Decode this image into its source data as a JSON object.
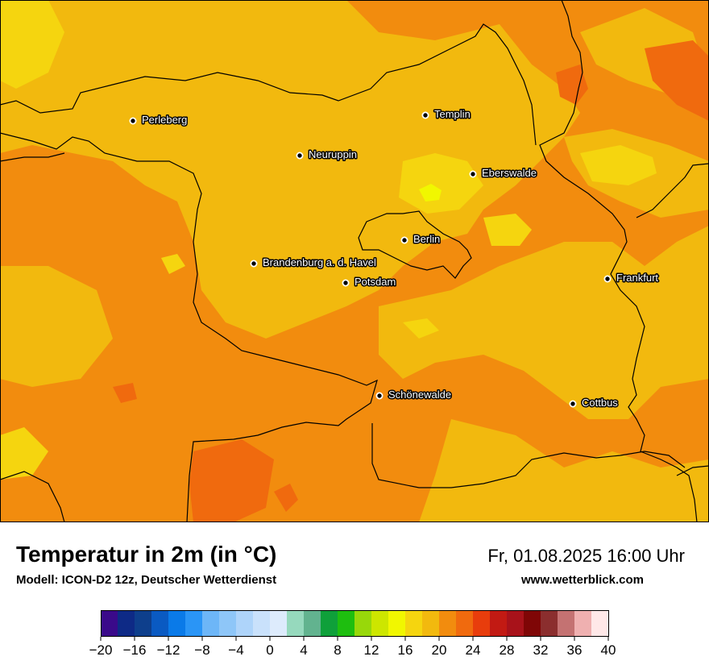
{
  "title": "Temperatur in 2m (in °C)",
  "model": "Modell: ICON-D2 12z, Deutscher Wetterdienst",
  "datetime": "Fr, 01.08.2025 16:00 Uhr",
  "website": "www.wetterblick.com",
  "colors": {
    "base_orange": "#F28C0E",
    "warm_yellow_orange": "#F2B90E",
    "yellow": "#F5D50F",
    "bright_yellow": "#F1F700",
    "hot_orange": "#F06A0E",
    "border": "#000000"
  },
  "cities": [
    {
      "name": "Perleberg"
    },
    {
      "name": "Templin"
    },
    {
      "name": "Neuruppin"
    },
    {
      "name": "Eberswalde"
    },
    {
      "name": "Berlin"
    },
    {
      "name": "Brandenburg a. d. Havel"
    },
    {
      "name": "Potsdam"
    },
    {
      "name": "Frankfurt"
    },
    {
      "name": "Schönewalde"
    },
    {
      "name": "Cottbus"
    }
  ],
  "colorbar": {
    "ticks": [
      "−20",
      "−16",
      "−12",
      "−8",
      "−4",
      "0",
      "4",
      "8",
      "12",
      "16",
      "20",
      "24",
      "28",
      "32",
      "36",
      "40"
    ],
    "colors": [
      "#3A0A8A",
      "#0E2A86",
      "#0E3F8C",
      "#0A5AC2",
      "#0A7AE8",
      "#2A95F6",
      "#6DB6F7",
      "#8EC6F8",
      "#AED4FA",
      "#C9E1FB",
      "#DDEBFC",
      "#96D9BD",
      "#62B38F",
      "#0FA03A",
      "#1EBE0F",
      "#98D80A",
      "#CDE600",
      "#F1F700",
      "#F5D50F",
      "#F2B90E",
      "#F28C0E",
      "#F06A0E",
      "#E83D0C",
      "#C21A13",
      "#A8121A",
      "#7F0606",
      "#8B2E2E",
      "#C47272",
      "#EFB0B0",
      "#FFE8E8"
    ]
  }
}
